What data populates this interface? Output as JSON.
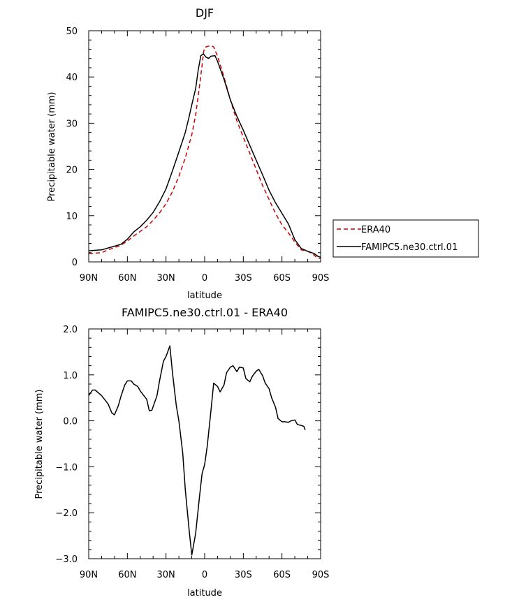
{
  "chart_data": [
    {
      "type": "line",
      "title": "DJF",
      "xlabel": "latitude",
      "ylabel": "Precipitable water (mm)",
      "xlim": [
        90,
        -90
      ],
      "ylim": [
        0,
        50
      ],
      "x_tick_values": [
        90,
        60,
        30,
        0,
        -30,
        -60,
        -90
      ],
      "x_tick_labels": [
        "90N",
        "60N",
        "30N",
        "0",
        "30S",
        "60S",
        "90S"
      ],
      "y_tick_values": [
        0,
        10,
        20,
        30,
        40,
        50
      ],
      "y_tick_labels": [
        "0",
        "10",
        "20",
        "30",
        "40",
        "50"
      ],
      "legend_location": "right",
      "series": [
        {
          "name": "ERA40",
          "color": "#cc0000",
          "dash": "dashed",
          "points": [
            [
              90,
              1.8
            ],
            [
              85,
              1.9
            ],
            [
              80,
              2.0
            ],
            [
              75,
              2.6
            ],
            [
              70,
              3.1
            ],
            [
              65,
              3.6
            ],
            [
              60,
              4.5
            ],
            [
              55,
              5.6
            ],
            [
              50,
              6.6
            ],
            [
              45,
              7.6
            ],
            [
              40,
              9.0
            ],
            [
              35,
              10.6
            ],
            [
              30,
              12.6
            ],
            [
              25,
              15.2
            ],
            [
              20,
              18.5
            ],
            [
              15,
              22.5
            ],
            [
              10,
              27.5
            ],
            [
              7,
              31.8
            ],
            [
              4,
              38.0
            ],
            [
              2,
              42.5
            ],
            [
              1,
              45.2
            ],
            [
              0,
              46.4
            ],
            [
              -2,
              46.6
            ],
            [
              -5,
              46.8
            ],
            [
              -7,
              46.5
            ],
            [
              -10,
              44.5
            ],
            [
              -15,
              40.0
            ],
            [
              -20,
              35.0
            ],
            [
              -25,
              30.5
            ],
            [
              -30,
              27.0
            ],
            [
              -35,
              23.5
            ],
            [
              -40,
              20.0
            ],
            [
              -45,
              16.5
            ],
            [
              -50,
              13.5
            ],
            [
              -55,
              10.5
            ],
            [
              -60,
              8.0
            ],
            [
              -65,
              6.3
            ],
            [
              -70,
              4.3
            ],
            [
              -75,
              2.6
            ],
            [
              -80,
              2.3
            ],
            [
              -85,
              1.5
            ],
            [
              -87,
              0.9
            ],
            [
              -90,
              0.7
            ]
          ]
        },
        {
          "name": "FAMIPC5.ne30.ctrl.01",
          "color": "#000000",
          "dash": "solid",
          "points": [
            [
              90,
              2.4
            ],
            [
              85,
              2.5
            ],
            [
              80,
              2.6
            ],
            [
              75,
              3.0
            ],
            [
              70,
              3.4
            ],
            [
              65,
              3.8
            ],
            [
              60,
              4.9
            ],
            [
              55,
              6.5
            ],
            [
              50,
              7.6
            ],
            [
              45,
              9.0
            ],
            [
              40,
              10.7
            ],
            [
              35,
              13.0
            ],
            [
              30,
              15.8
            ],
            [
              25,
              19.7
            ],
            [
              20,
              23.8
            ],
            [
              15,
              28.0
            ],
            [
              12,
              31.5
            ],
            [
              10,
              34.0
            ],
            [
              7,
              37.5
            ],
            [
              5,
              41.5
            ],
            [
              3,
              44.6
            ],
            [
              1,
              45.0
            ],
            [
              -1,
              44.3
            ],
            [
              -3,
              44.0
            ],
            [
              -5,
              44.5
            ],
            [
              -8,
              44.6
            ],
            [
              -10,
              43.4
            ],
            [
              -15,
              39.5
            ],
            [
              -20,
              35.0
            ],
            [
              -25,
              31.5
            ],
            [
              -30,
              28.5
            ],
            [
              -35,
              25.2
            ],
            [
              -40,
              22.0
            ],
            [
              -45,
              18.8
            ],
            [
              -50,
              15.5
            ],
            [
              -55,
              12.8
            ],
            [
              -60,
              10.5
            ],
            [
              -65,
              8.2
            ],
            [
              -70,
              4.8
            ],
            [
              -75,
              2.9
            ],
            [
              -80,
              2.3
            ],
            [
              -85,
              1.8
            ],
            [
              -88,
              1.2
            ],
            [
              -90,
              1.0
            ]
          ]
        }
      ],
      "legend": {
        "entries": [
          {
            "label": "ERA40",
            "color": "#cc0000",
            "dash": "dashed"
          },
          {
            "label": "FAMIPC5.ne30.ctrl.01",
            "color": "#000000",
            "dash": "solid"
          }
        ]
      }
    },
    {
      "type": "line",
      "title": "FAMIPC5.ne30.ctrl.01 - ERA40",
      "xlabel": "latitude",
      "ylabel": "Precipitable water (mm)",
      "xlim": [
        90,
        -90
      ],
      "ylim": [
        -3.0,
        2.0
      ],
      "x_tick_values": [
        90,
        60,
        30,
        0,
        -30,
        -60,
        -90
      ],
      "x_tick_labels": [
        "90N",
        "60N",
        "30N",
        "0",
        "30S",
        "60S",
        "90S"
      ],
      "y_tick_values": [
        -3,
        -2,
        -1,
        0,
        1,
        2
      ],
      "y_tick_labels": [
        "−3.0",
        "−2.0",
        "−1.0",
        "0.0",
        "1.0",
        "2.0"
      ],
      "series": [
        {
          "name": "",
          "color": "#000000",
          "dash": "solid",
          "points": [
            [
              90,
              0.55
            ],
            [
              87,
              0.67
            ],
            [
              85,
              0.67
            ],
            [
              80,
              0.55
            ],
            [
              75,
              0.37
            ],
            [
              72,
              0.17
            ],
            [
              70,
              0.13
            ],
            [
              67,
              0.33
            ],
            [
              65,
              0.53
            ],
            [
              62,
              0.78
            ],
            [
              60,
              0.87
            ],
            [
              57,
              0.87
            ],
            [
              55,
              0.8
            ],
            [
              52,
              0.75
            ],
            [
              50,
              0.65
            ],
            [
              45,
              0.47
            ],
            [
              43,
              0.22
            ],
            [
              41,
              0.23
            ],
            [
              37,
              0.55
            ],
            [
              35,
              0.87
            ],
            [
              32,
              1.3
            ],
            [
              30,
              1.4
            ],
            [
              27,
              1.63
            ],
            [
              25,
              1.05
            ],
            [
              22,
              0.33
            ],
            [
              20,
              0.0
            ],
            [
              17,
              -0.7
            ],
            [
              15,
              -1.5
            ],
            [
              12,
              -2.4
            ],
            [
              10,
              -2.92
            ],
            [
              7,
              -2.45
            ],
            [
              4,
              -1.65
            ],
            [
              2,
              -1.15
            ],
            [
              0,
              -0.95
            ],
            [
              -2,
              -0.55
            ],
            [
              -5,
              0.25
            ],
            [
              -7,
              0.82
            ],
            [
              -10,
              0.75
            ],
            [
              -12,
              0.63
            ],
            [
              -15,
              0.78
            ],
            [
              -17,
              1.05
            ],
            [
              -20,
              1.17
            ],
            [
              -22,
              1.2
            ],
            [
              -25,
              1.07
            ],
            [
              -27,
              1.17
            ],
            [
              -30,
              1.15
            ],
            [
              -32,
              0.92
            ],
            [
              -35,
              0.85
            ],
            [
              -37,
              0.97
            ],
            [
              -40,
              1.08
            ],
            [
              -42,
              1.12
            ],
            [
              -45,
              0.98
            ],
            [
              -47,
              0.82
            ],
            [
              -50,
              0.7
            ],
            [
              -52,
              0.5
            ],
            [
              -55,
              0.3
            ],
            [
              -57,
              0.05
            ],
            [
              -60,
              -0.02
            ],
            [
              -62,
              -0.02
            ],
            [
              -65,
              -0.03
            ],
            [
              -67,
              0.0
            ],
            [
              -70,
              0.02
            ],
            [
              -72,
              -0.08
            ],
            [
              -75,
              -0.1
            ],
            [
              -77,
              -0.12
            ],
            [
              -78,
              -0.2
            ]
          ]
        }
      ]
    }
  ]
}
